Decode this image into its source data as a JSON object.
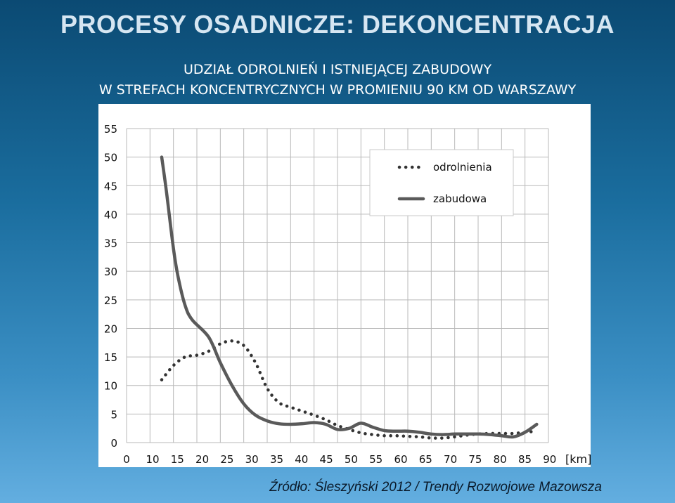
{
  "slide": {
    "title": "PROCESY OSADNICZE: DEKONCENTRACJA",
    "chart_title_line1": "UDZIAŁ ODROLNIEŃ I ISTNIEJĄCEJ ZABUDOWY",
    "chart_title_line2": "W STREFACH KONCENTRYCZNYCH W PROMIENIU 90 KM OD WARSZAWY",
    "source": "Źródło: Śleszyński 2012 / Trendy Rozwojowe Mazowsza"
  },
  "chart_data": {
    "type": "line",
    "title": "UDZIAŁ ODROLNIEŃ I ISTNIEJĄCEJ ZABUDOWY W STREFACH KONCENTRYCZNYCH W PROMIENIU 90 KM OD WARSZAWY",
    "xlabel": "[km]",
    "ylabel": "[%]",
    "xlim": [
      0,
      90
    ],
    "ylim": [
      0,
      55
    ],
    "xticks": [
      0,
      10,
      15,
      20,
      25,
      30,
      35,
      40,
      45,
      50,
      55,
      60,
      65,
      70,
      75,
      80,
      85,
      90
    ],
    "yticks": [
      0,
      5,
      10,
      15,
      20,
      25,
      30,
      35,
      40,
      45,
      50,
      55
    ],
    "grid": true,
    "legend_position": "top-right",
    "series": [
      {
        "name": "odrolnienia",
        "style": "dotted",
        "color": "#333333",
        "x": [
          7.5,
          10,
          12.5,
          15,
          17.5,
          20,
          22.5,
          25,
          27.5,
          30,
          32.5,
          35,
          37.5,
          40,
          42.5,
          45,
          47.5,
          50,
          52.5,
          55,
          57.5,
          60,
          62.5,
          65,
          67.5,
          70,
          72.5,
          75,
          77.5,
          80,
          82.5,
          85,
          87.5
        ],
        "y": [
          11,
          13.5,
          15,
          15.3,
          16,
          17.3,
          17.8,
          17,
          14,
          9.5,
          7,
          6.2,
          5.5,
          4.8,
          4,
          3,
          2.3,
          1.7,
          1.4,
          1.2,
          1.2,
          1.1,
          1.0,
          0.8,
          0.8,
          1.0,
          1.3,
          1.5,
          1.6,
          1.6,
          1.6,
          1.8,
          2.0
        ]
      },
      {
        "name": "zabudowa",
        "style": "solid",
        "color": "#5a5a5a",
        "x": [
          7.5,
          8.5,
          10,
          11,
          12.5,
          14,
          17.5,
          20,
          22.5,
          25,
          27.5,
          30,
          32.5,
          35,
          37.5,
          40,
          42.5,
          45,
          47.5,
          50,
          52.5,
          55,
          57.5,
          60,
          62.5,
          65,
          67.5,
          70,
          72.5,
          75,
          77.5,
          80,
          82.5,
          85,
          87.5
        ],
        "y": [
          50,
          44,
          34,
          29,
          24,
          21.5,
          18.5,
          14,
          10,
          6.8,
          4.8,
          3.8,
          3.3,
          3.2,
          3.3,
          3.5,
          3.2,
          2.3,
          2.5,
          3.4,
          2.7,
          2.1,
          2.0,
          2.0,
          1.8,
          1.5,
          1.4,
          1.5,
          1.5,
          1.5,
          1.4,
          1.2,
          1.0,
          1.8,
          3.2
        ]
      }
    ]
  }
}
